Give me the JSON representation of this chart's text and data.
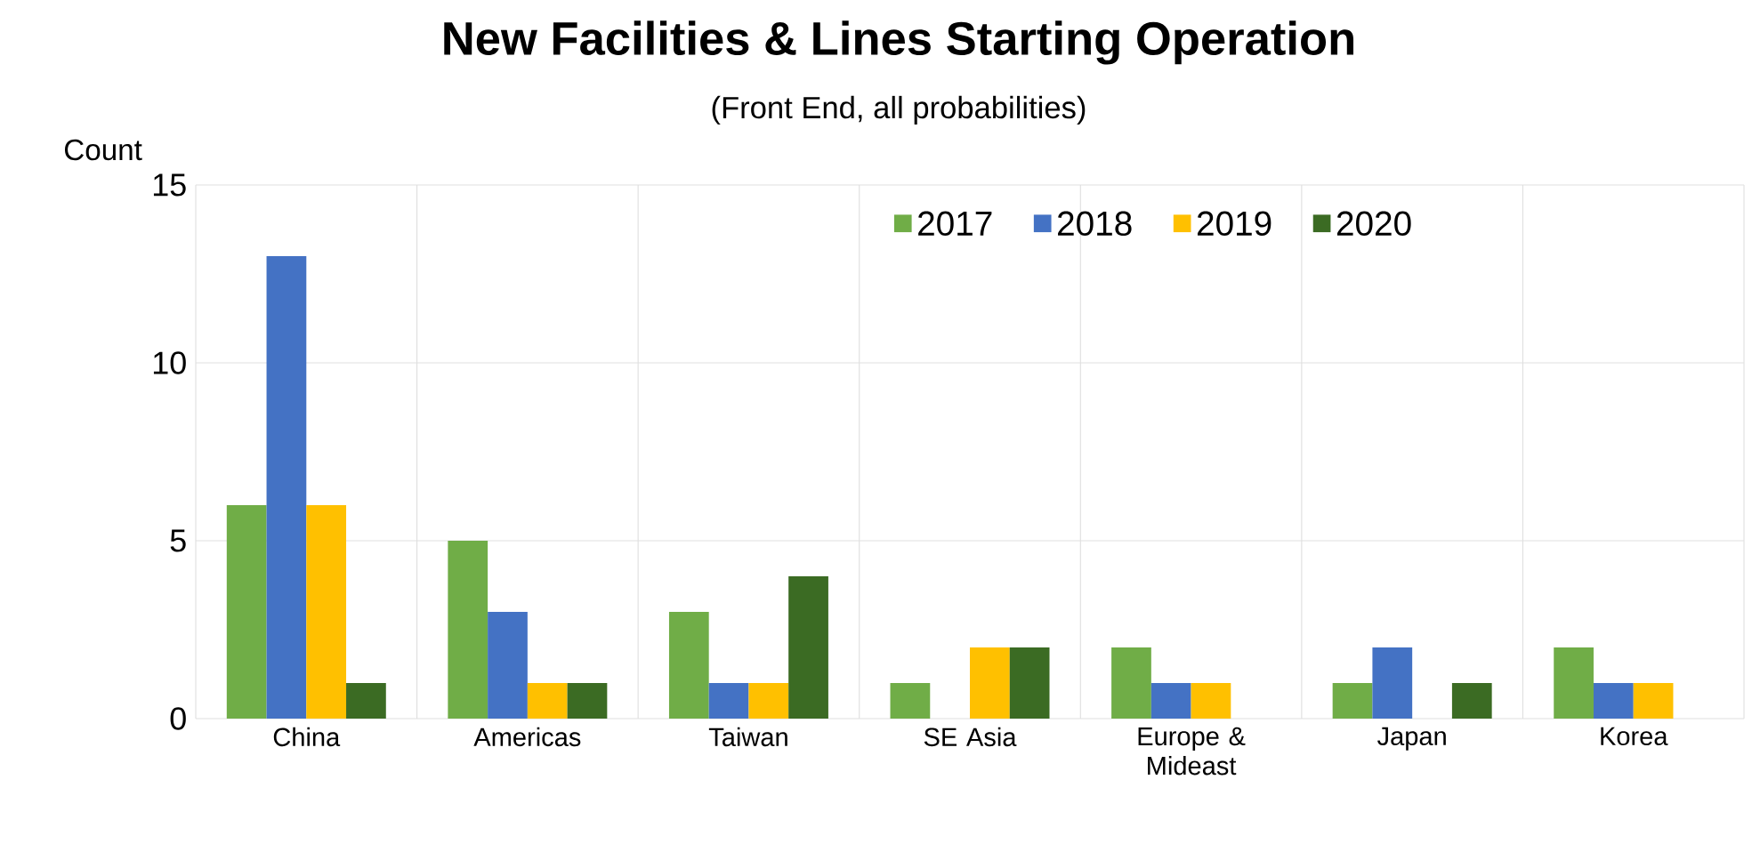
{
  "chart_data": {
    "type": "bar",
    "title": "New Facilities & Lines Starting Operation",
    "subtitle": "(Front End, all probabilities)",
    "ylabel": "Count",
    "categories": [
      "China",
      "Americas",
      "Taiwan",
      "SE Asia",
      "Europe & Mideast",
      "Japan",
      "Korea"
    ],
    "series": [
      {
        "name": "2017",
        "color": "#70ad47",
        "values": [
          6,
          5,
          3,
          1,
          2,
          1,
          2
        ]
      },
      {
        "name": "2018",
        "color": "#4472c4",
        "values": [
          13,
          3,
          1,
          0,
          1,
          2,
          1
        ]
      },
      {
        "name": "2019",
        "color": "#ffc000",
        "values": [
          6,
          1,
          1,
          2,
          1,
          0,
          1
        ]
      },
      {
        "name": "2020",
        "color": "#3b6b23",
        "values": [
          1,
          1,
          4,
          2,
          0,
          1,
          0
        ]
      }
    ],
    "ylim": [
      0,
      15
    ],
    "yticks": [
      0,
      5,
      10,
      15
    ],
    "grid": true,
    "legend": "top"
  }
}
